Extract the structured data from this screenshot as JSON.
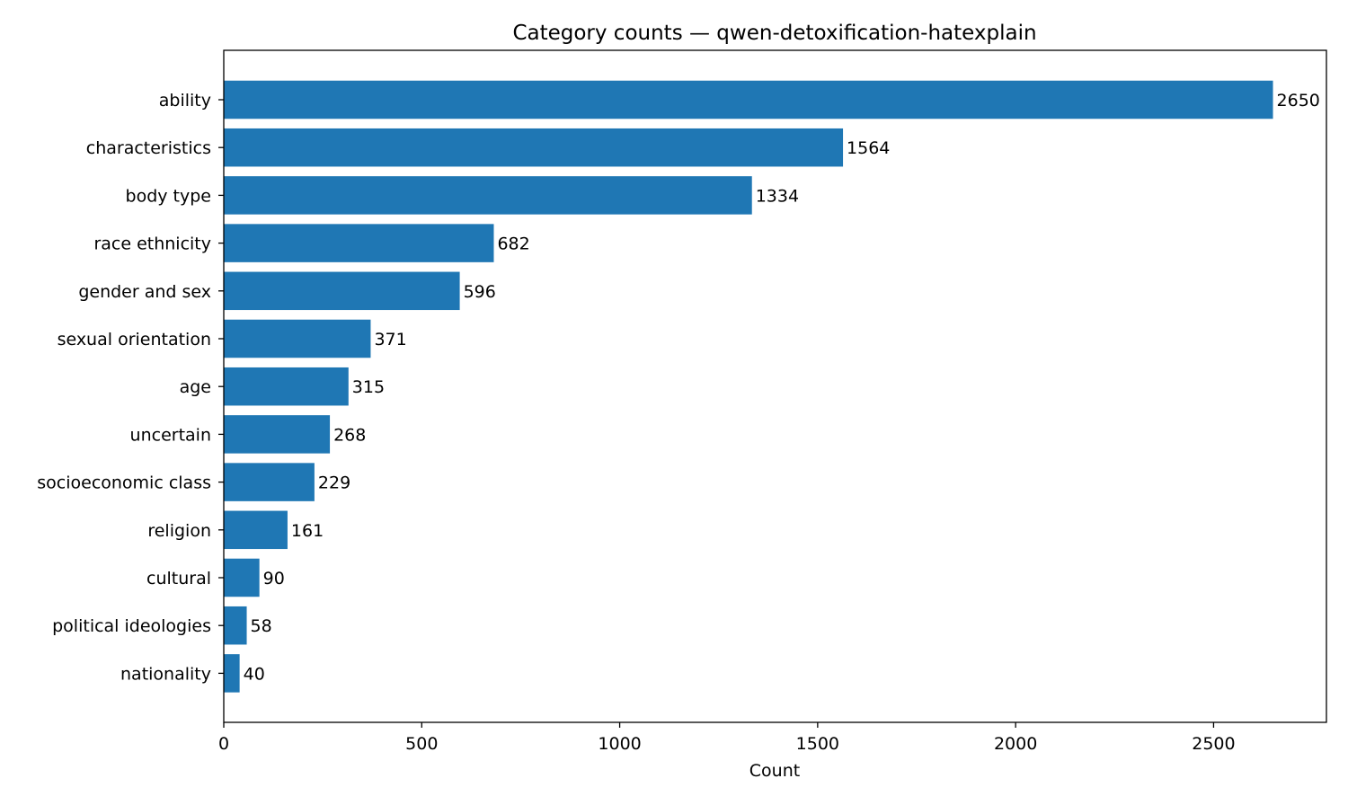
{
  "chart_data": {
    "type": "bar",
    "orientation": "horizontal",
    "title": "Category counts — qwen-detoxification-hatexplain",
    "xlabel": "Count",
    "ylabel": "",
    "xlim": [
      0,
      2785
    ],
    "x_ticks": [
      0,
      500,
      1000,
      1500,
      2000,
      2500
    ],
    "grid": false,
    "bar_color": "#1f77b4",
    "categories": [
      "ability",
      "characteristics",
      "body type",
      "race ethnicity",
      "gender and sex",
      "sexual orientation",
      "age",
      "uncertain",
      "socioeconomic class",
      "religion",
      "cultural",
      "political ideologies",
      "nationality"
    ],
    "values": [
      2650,
      1564,
      1334,
      682,
      596,
      371,
      315,
      268,
      229,
      161,
      90,
      58,
      40
    ],
    "data_labels": [
      "2650",
      "1564",
      "1334",
      "682",
      "596",
      "371",
      "315",
      "268",
      "229",
      "161",
      "90",
      "58",
      "40"
    ]
  }
}
